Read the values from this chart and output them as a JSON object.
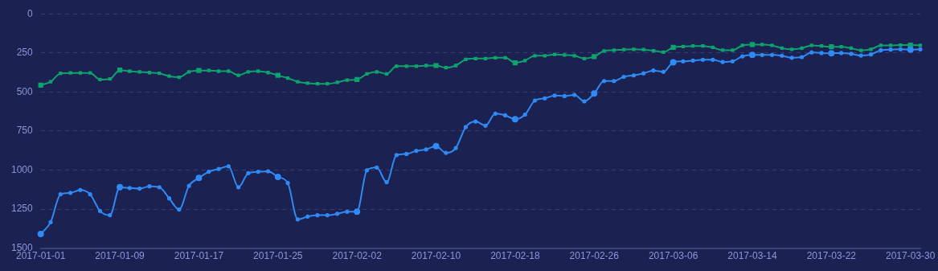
{
  "chart_data": {
    "type": "line",
    "x": [
      "2017-01-01",
      "2017-01-02",
      "2017-01-03",
      "2017-01-04",
      "2017-01-05",
      "2017-01-06",
      "2017-01-07",
      "2017-01-08",
      "2017-01-09",
      "2017-01-10",
      "2017-01-11",
      "2017-01-12",
      "2017-01-13",
      "2017-01-14",
      "2017-01-15",
      "2017-01-16",
      "2017-01-17",
      "2017-01-18",
      "2017-01-19",
      "2017-01-20",
      "2017-01-21",
      "2017-01-22",
      "2017-01-23",
      "2017-01-24",
      "2017-01-25",
      "2017-01-26",
      "2017-01-27",
      "2017-01-28",
      "2017-01-29",
      "2017-01-30",
      "2017-01-31",
      "2017-02-01",
      "2017-02-02",
      "2017-02-03",
      "2017-02-04",
      "2017-02-05",
      "2017-02-06",
      "2017-02-07",
      "2017-02-08",
      "2017-02-09",
      "2017-02-10",
      "2017-02-11",
      "2017-02-12",
      "2017-02-13",
      "2017-02-14",
      "2017-02-15",
      "2017-02-16",
      "2017-02-17",
      "2017-02-18",
      "2017-02-19",
      "2017-02-20",
      "2017-02-21",
      "2017-02-22",
      "2017-02-23",
      "2017-02-24",
      "2017-02-25",
      "2017-02-26",
      "2017-02-27",
      "2017-02-28",
      "2017-03-01",
      "2017-03-02",
      "2017-03-03",
      "2017-03-04",
      "2017-03-05",
      "2017-03-06",
      "2017-03-07",
      "2017-03-08",
      "2017-03-09",
      "2017-03-10",
      "2017-03-11",
      "2017-03-12",
      "2017-03-13",
      "2017-03-14",
      "2017-03-15",
      "2017-03-16",
      "2017-03-17",
      "2017-03-18",
      "2017-03-19",
      "2017-03-20",
      "2017-03-21",
      "2017-03-22",
      "2017-03-23",
      "2017-03-24",
      "2017-03-25",
      "2017-03-26",
      "2017-03-27",
      "2017-03-28",
      "2017-03-29",
      "2017-03-30",
      "2017-03-31"
    ],
    "series": [
      {
        "color": "#2f8af5",
        "marker": "circle",
        "values": [
          1409,
          1334,
          1155,
          1146,
          1128,
          1155,
          1262,
          1289,
          1110,
          1115,
          1119,
          1104,
          1110,
          1181,
          1253,
          1101,
          1051,
          1011,
          993,
          976,
          1110,
          1020,
          1011,
          1008,
          1044,
          1083,
          1316,
          1298,
          1289,
          1289,
          1280,
          1267,
          1266,
          1002,
          984,
          1078,
          904,
          897,
          877,
          868,
          847,
          890,
          859,
          725,
          689,
          716,
          639,
          650,
          675,
          645,
          555,
          541,
          523,
          526,
          519,
          560,
          510,
          430,
          430,
          403,
          394,
          381,
          363,
          371,
          310,
          304,
          299,
          294,
          294,
          308,
          304,
          272,
          263,
          263,
          263,
          268,
          281,
          277,
          247,
          251,
          252,
          251,
          256,
          267,
          260,
          233,
          229,
          227,
          229,
          227
        ]
      },
      {
        "color": "#0ea26d",
        "marker": "square",
        "values": [
          456,
          435,
          381,
          378,
          378,
          378,
          421,
          417,
          360,
          367,
          372,
          376,
          381,
          399,
          406,
          371,
          363,
          363,
          367,
          367,
          394,
          371,
          367,
          376,
          394,
          412,
          435,
          444,
          448,
          448,
          439,
          424,
          421,
          385,
          371,
          385,
          335,
          335,
          335,
          331,
          331,
          345,
          331,
          292,
          286,
          286,
          281,
          281,
          313,
          299,
          268,
          268,
          260,
          263,
          268,
          286,
          274,
          238,
          233,
          229,
          227,
          229,
          236,
          245,
          215,
          209,
          206,
          206,
          215,
          233,
          233,
          202,
          197,
          197,
          202,
          220,
          227,
          220,
          202,
          206,
          211,
          211,
          220,
          234,
          227,
          202,
          202,
          200,
          200,
          202
        ]
      }
    ],
    "xlim": [
      "2017-01-01",
      "2017-03-31"
    ],
    "xticks": [
      "2017-01-01",
      "2017-01-09",
      "2017-01-17",
      "2017-01-25",
      "2017-02-02",
      "2017-02-10",
      "2017-02-18",
      "2017-02-26",
      "2017-03-06",
      "2017-03-14",
      "2017-03-22",
      "2017-03-30"
    ],
    "ylim": [
      1500,
      0
    ],
    "yticks": [
      0,
      250,
      500,
      750,
      1000,
      1250,
      1500
    ],
    "grid": "y",
    "legend": false
  }
}
